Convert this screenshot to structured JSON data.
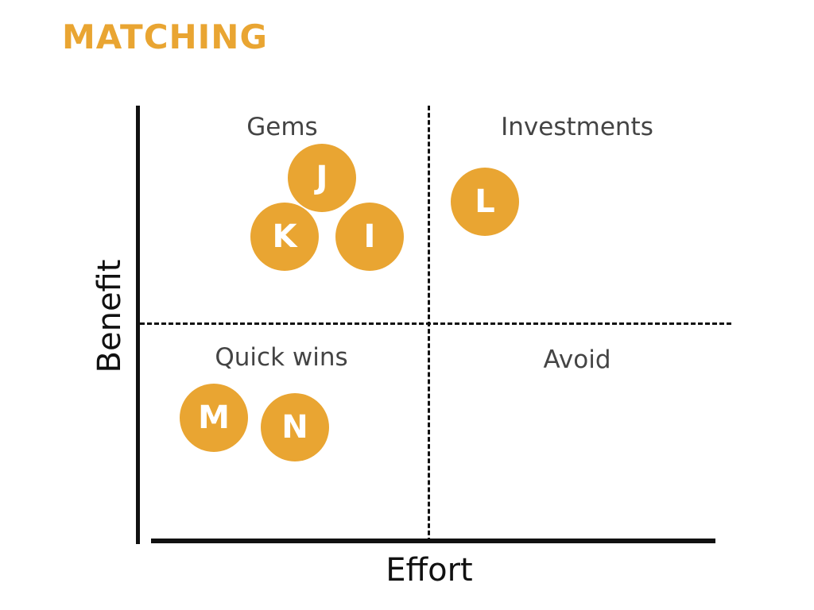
{
  "title": "MATCHING",
  "colors": {
    "accent": "#E9A532",
    "axis": "#111111",
    "label": "#444444"
  },
  "axes": {
    "x_label": "Effort",
    "y_label": "Benefit"
  },
  "quadrants": {
    "top_left": "Gems",
    "top_right": "Investments",
    "bottom_left": "Quick wins",
    "bottom_right": "Avoid"
  },
  "items": [
    {
      "letter": "J",
      "quadrant": "Gems"
    },
    {
      "letter": "K",
      "quadrant": "Gems"
    },
    {
      "letter": "I",
      "quadrant": "Gems"
    },
    {
      "letter": "L",
      "quadrant": "Investments"
    },
    {
      "letter": "M",
      "quadrant": "Quick wins"
    },
    {
      "letter": "N",
      "quadrant": "Quick wins"
    }
  ]
}
